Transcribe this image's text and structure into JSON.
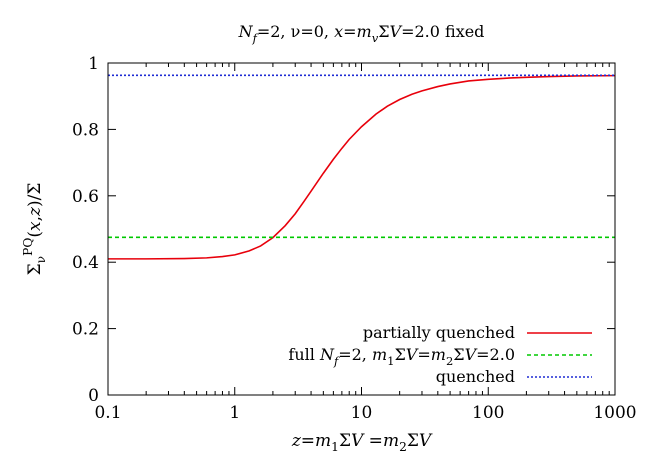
{
  "chart_data": {
    "type": "line",
    "title": {
      "parts": [
        {
          "text": "N",
          "style": "italic"
        },
        {
          "text": "f",
          "style": "italic-sub"
        },
        {
          "text": "=2, ν=0, ",
          "style": "normal"
        },
        {
          "text": "x",
          "style": "italic"
        },
        {
          "text": "=",
          "style": "normal"
        },
        {
          "text": "m",
          "style": "italic"
        },
        {
          "text": "v",
          "style": "italic-sub"
        },
        {
          "text": "Σ",
          "style": "normal"
        },
        {
          "text": "V",
          "style": "italic"
        },
        {
          "text": "=2.0 fixed",
          "style": "normal"
        }
      ]
    },
    "xlabel": {
      "parts": [
        {
          "text": "z",
          "style": "italic"
        },
        {
          "text": "=",
          "style": "normal"
        },
        {
          "text": "m",
          "style": "italic"
        },
        {
          "text": "1",
          "style": "sub"
        },
        {
          "text": "Σ",
          "style": "normal"
        },
        {
          "text": "V",
          "style": "italic"
        },
        {
          "text": " =",
          "style": "normal"
        },
        {
          "text": "m",
          "style": "italic"
        },
        {
          "text": "2",
          "style": "sub"
        },
        {
          "text": "Σ",
          "style": "normal"
        },
        {
          "text": "V",
          "style": "italic"
        }
      ]
    },
    "ylabel": {
      "parts": [
        {
          "text": "Σ",
          "style": "normal"
        },
        {
          "text": "ν",
          "style": "sub"
        },
        {
          "text": "PQ",
          "style": "sup"
        },
        {
          "text": "(",
          "style": "normal"
        },
        {
          "text": "x",
          "style": "italic"
        },
        {
          "text": ",",
          "style": "normal"
        },
        {
          "text": "z",
          "style": "italic"
        },
        {
          "text": ")/Σ",
          "style": "normal"
        }
      ]
    },
    "x_scale": "log",
    "xlim": [
      0.1,
      1000
    ],
    "ylim": [
      0,
      1
    ],
    "x_ticks": [
      0.1,
      1,
      10,
      100,
      1000
    ],
    "x_tick_labels": [
      "0.1",
      "1",
      "10",
      "100",
      "1000"
    ],
    "y_ticks": [
      0,
      0.2,
      0.4,
      0.6,
      0.8,
      1
    ],
    "y_tick_labels": [
      "0",
      "0.2",
      "0.4",
      "0.6",
      "0.8",
      "1"
    ],
    "grid": false,
    "legend_position": "bottom-right",
    "series": [
      {
        "name": {
          "parts": [
            {
              "text": "partially quenched",
              "style": "normal"
            }
          ]
        },
        "color": "#e8000b",
        "dash": "solid",
        "x": [
          0.1,
          0.2,
          0.4,
          0.6,
          0.8,
          1,
          1.3,
          1.6,
          2,
          2.5,
          3,
          3.5,
          4,
          5,
          6,
          7,
          8,
          10,
          13,
          16,
          20,
          25,
          30,
          40,
          50,
          70,
          100,
          150,
          200,
          300,
          500,
          1000
        ],
        "y": [
          0.41,
          0.41,
          0.411,
          0.413,
          0.417,
          0.422,
          0.434,
          0.449,
          0.474,
          0.51,
          0.546,
          0.582,
          0.614,
          0.668,
          0.71,
          0.743,
          0.77,
          0.808,
          0.846,
          0.87,
          0.89,
          0.906,
          0.916,
          0.929,
          0.937,
          0.946,
          0.951,
          0.955,
          0.957,
          0.959,
          0.961,
          0.962
        ]
      },
      {
        "name": {
          "parts": [
            {
              "text": "full ",
              "style": "normal"
            },
            {
              "text": "N",
              "style": "italic"
            },
            {
              "text": "f",
              "style": "italic-sub"
            },
            {
              "text": "=2, ",
              "style": "normal"
            },
            {
              "text": "m",
              "style": "italic"
            },
            {
              "text": "1",
              "style": "sub"
            },
            {
              "text": "Σ",
              "style": "normal"
            },
            {
              "text": "V",
              "style": "italic"
            },
            {
              "text": "=",
              "style": "normal"
            },
            {
              "text": "m",
              "style": "italic"
            },
            {
              "text": "2",
              "style": "sub"
            },
            {
              "text": "Σ",
              "style": "normal"
            },
            {
              "text": "V",
              "style": "italic"
            },
            {
              "text": "=2.0",
              "style": "normal"
            }
          ]
        },
        "color": "#00c800",
        "dash": "dashed",
        "x": [
          0.1,
          1000
        ],
        "y": [
          0.475,
          0.475
        ]
      },
      {
        "name": {
          "parts": [
            {
              "text": "quenched",
              "style": "normal"
            }
          ]
        },
        "color": "#1e2bd4",
        "dash": "dotted",
        "x": [
          0.1,
          1000
        ],
        "y": [
          0.963,
          0.963
        ]
      }
    ]
  }
}
